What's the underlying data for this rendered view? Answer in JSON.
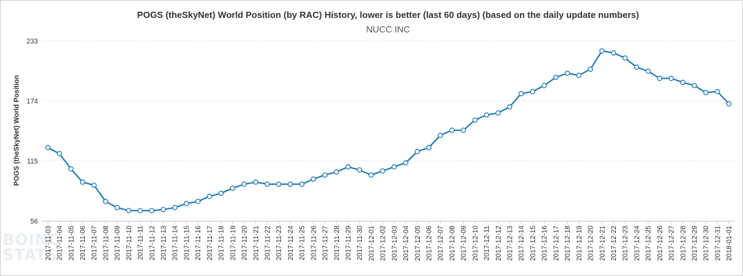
{
  "chart_data": {
    "type": "line",
    "title": "POGS (theSkyNet) World Position (by RAC) History, lower is better (last 60 days) (based on the daily update numbers)",
    "subtitle": "NUCC INC",
    "ylabel": "POGS (theSkyNet) World Position",
    "xlabel": "",
    "ylim": [
      56,
      233
    ],
    "yticks": [
      56,
      115,
      174,
      233
    ],
    "grid": true,
    "legend": "none",
    "line_color": "#1f78b4",
    "categories": [
      "2017-11-03",
      "2017-11-04",
      "2017-11-05",
      "2017-11-06",
      "2017-11-07",
      "2017-11-08",
      "2017-11-09",
      "2017-11-10",
      "2017-11-11",
      "2017-11-12",
      "2017-11-13",
      "2017-11-14",
      "2017-11-15",
      "2017-11-16",
      "2017-11-17",
      "2017-11-18",
      "2017-11-19",
      "2017-11-20",
      "2017-11-21",
      "2017-11-22",
      "2017-11-23",
      "2017-11-24",
      "2017-11-25",
      "2017-11-26",
      "2017-11-27",
      "2017-11-28",
      "2017-11-29",
      "2017-11-30",
      "2017-12-01",
      "2017-12-02",
      "2017-12-03",
      "2017-12-04",
      "2017-12-05",
      "2017-12-06",
      "2017-12-07",
      "2017-12-08",
      "2017-12-09",
      "2017-12-10",
      "2017-12-11",
      "2017-12-12",
      "2017-12-13",
      "2017-12-14",
      "2017-12-15",
      "2017-12-16",
      "2017-12-17",
      "2017-12-18",
      "2017-12-19",
      "2017-12-20",
      "2017-12-21",
      "2017-12-22",
      "2017-12-23",
      "2017-12-24",
      "2017-12-25",
      "2017-12-26",
      "2017-12-27",
      "2017-12-28",
      "2017-12-29",
      "2017-12-30",
      "2017-12-31",
      "2018-01-01"
    ],
    "values": [
      128,
      122,
      107,
      94,
      91,
      75,
      69,
      66,
      66,
      66,
      67,
      69,
      73,
      75,
      80,
      83,
      88,
      92,
      94,
      92,
      92,
      92,
      92,
      97,
      101,
      104,
      109,
      106,
      101,
      105,
      109,
      113,
      124,
      128,
      140,
      145,
      145,
      155,
      160,
      162,
      168,
      181,
      183,
      189,
      197,
      201,
      199,
      205,
      223,
      221,
      216,
      207,
      203,
      196,
      196,
      192,
      189,
      182,
      183,
      171
    ]
  }
}
